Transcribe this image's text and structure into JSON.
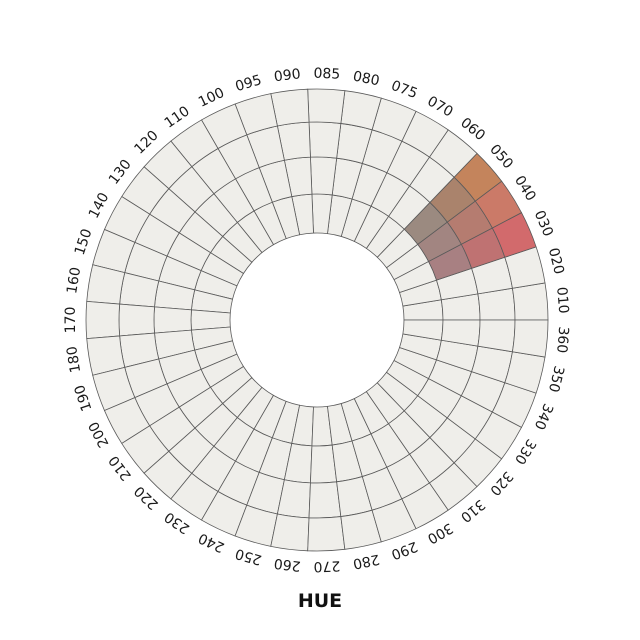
{
  "chart_data": {
    "type": "heatmap",
    "projection": "polar",
    "title": "HUE",
    "sector_labels": [
      "010",
      "020",
      "030",
      "040",
      "050",
      "060",
      "070",
      "075",
      "080",
      "085",
      "090",
      "095",
      "100",
      "110",
      "120",
      "130",
      "140",
      "150",
      "160",
      "170",
      "180",
      "190",
      "200",
      "210",
      "220",
      "230",
      "240",
      "250",
      "260",
      "270",
      "280",
      "290",
      "300",
      "310",
      "320",
      "330",
      "340",
      "350",
      "360"
    ],
    "direction": "counterclockwise from right",
    "rings": 4,
    "empty_cell_color": "#efeeea",
    "grid_line_color": "#5a5a5a",
    "highlighted_cells": [
      {
        "sector": "030",
        "ring": 4,
        "color": "#d26a6c"
      },
      {
        "sector": "040",
        "ring": 4,
        "color": "#cb7a68"
      },
      {
        "sector": "050",
        "ring": 4,
        "color": "#c4845c"
      },
      {
        "sector": "030",
        "ring": 3,
        "color": "#bf7272"
      },
      {
        "sector": "040",
        "ring": 3,
        "color": "#b57c70"
      },
      {
        "sector": "050",
        "ring": 3,
        "color": "#aa836c"
      },
      {
        "sector": "030",
        "ring": 2,
        "color": "#a88082"
      },
      {
        "sector": "040",
        "ring": 2,
        "color": "#a28581"
      },
      {
        "sector": "050",
        "ring": 2,
        "color": "#9b8a80"
      }
    ]
  }
}
